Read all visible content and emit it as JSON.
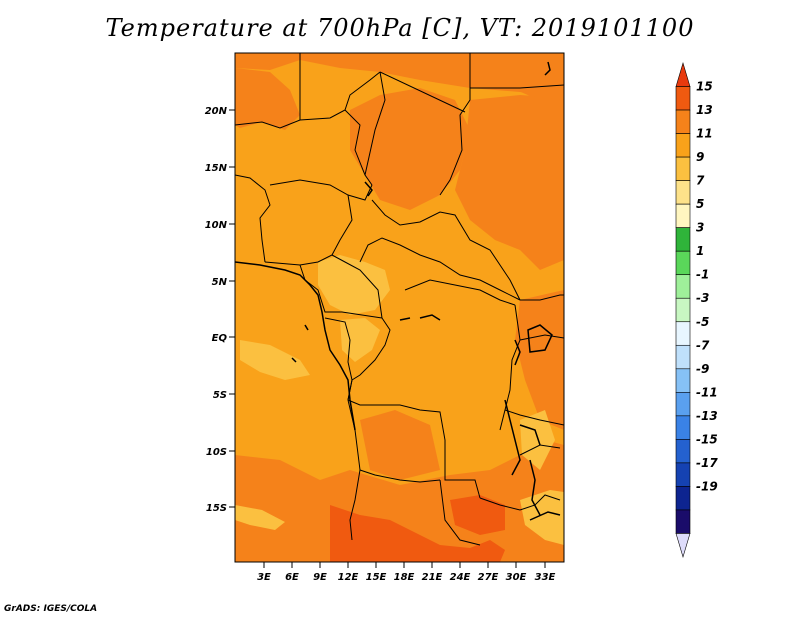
{
  "title": "Temperature at 700hPa [C], VT: 2019101100",
  "credit": "GrADS: IGES/COLA",
  "map": {
    "lat_ticks": [
      "20N",
      "15N",
      "10N",
      "5N",
      "EQ",
      "5S",
      "10S",
      "15S"
    ],
    "lon_ticks": [
      "3E",
      "6E",
      "9E",
      "12E",
      "15E",
      "18E",
      "21E",
      "24E",
      "27E",
      "30E",
      "33E"
    ]
  },
  "colorbar": {
    "labels": [
      "15",
      "13",
      "11",
      "9",
      "7",
      "5",
      "3",
      "1",
      "-1",
      "-3",
      "-5",
      "-7",
      "-9",
      "-11",
      "-13",
      "-15",
      "-17",
      "-19"
    ],
    "colors": [
      "#e83a0e",
      "#f05a10",
      "#f5821a",
      "#f9a21a",
      "#fbc040",
      "#fde28a",
      "#fff6c0",
      "#2fb43a",
      "#5ad75a",
      "#9ff09a",
      "#c8f7c2",
      "#e8f6ff",
      "#bfe0fb",
      "#86c1f6",
      "#5aa0ef",
      "#3a82e6",
      "#2461cf",
      "#1542b2",
      "#0d2490",
      "#1a0c6a",
      "#dedcfb"
    ]
  },
  "colors": {
    "base": "#f9a21a",
    "warm": "#f5821a",
    "hot": "#f05a10",
    "cool": "#fbc040",
    "border": "#000000"
  }
}
